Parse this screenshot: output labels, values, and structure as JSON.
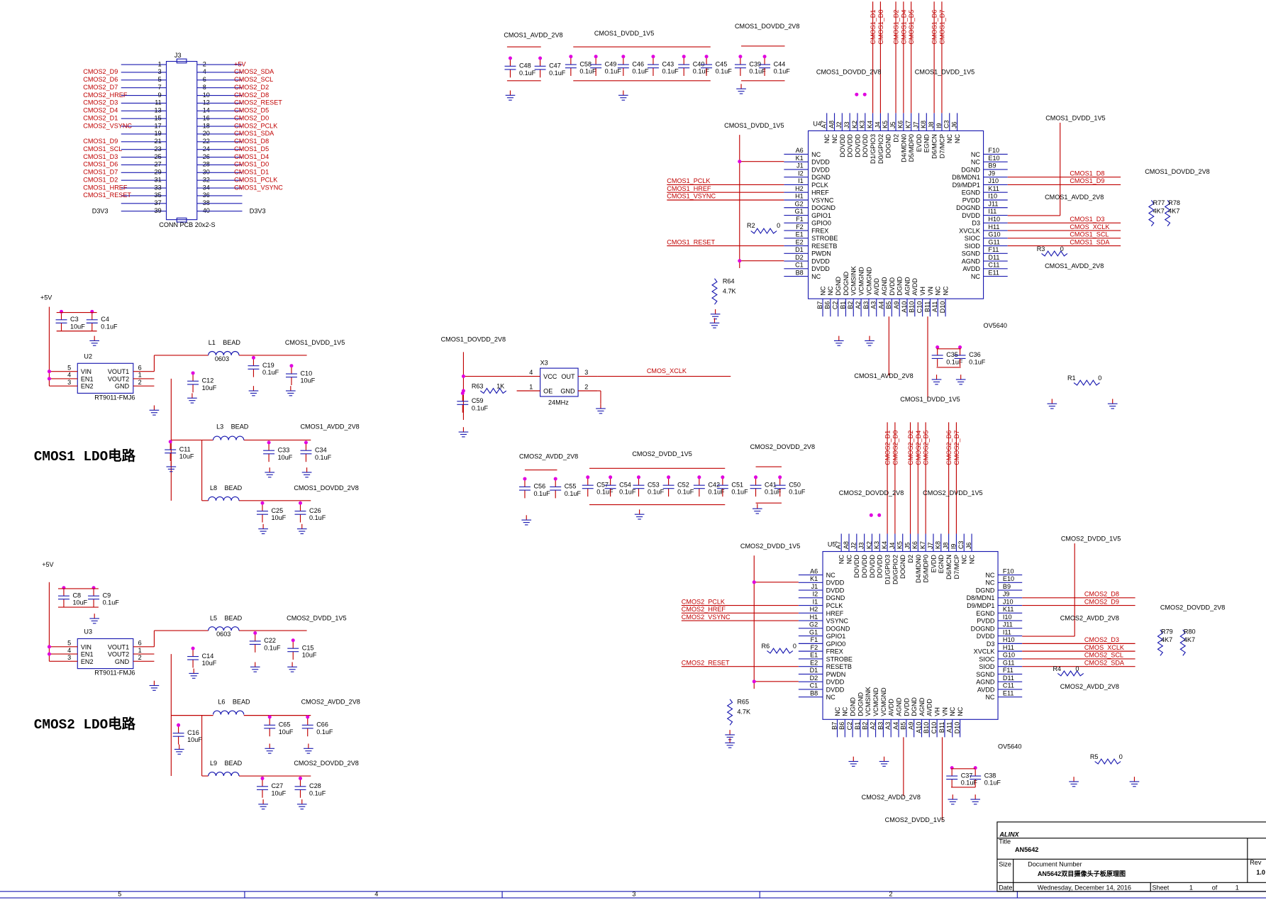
{
  "connector": {
    "ref": "J3",
    "part": "CONN PCB 20x2-S",
    "odd_pins": [
      1,
      3,
      5,
      7,
      9,
      11,
      13,
      15,
      17,
      19,
      21,
      23,
      25,
      27,
      29,
      31,
      33,
      35,
      37,
      39
    ],
    "even_pins": [
      2,
      4,
      6,
      8,
      10,
      12,
      14,
      16,
      18,
      20,
      22,
      24,
      26,
      28,
      30,
      32,
      34,
      36,
      38,
      40
    ],
    "odd_nets": [
      null,
      "CMOS2_D9",
      "CMOS2_D6",
      "CMOS2_D7",
      "CMOS2_HREF",
      "CMOS2_D3",
      "CMOS2_D4",
      "CMOS2_D1",
      "CMOS2_VSYNC",
      null,
      "CMOS1_D9",
      "CMOS1_SCL",
      "CMOS1_D3",
      "CMOS1_D6",
      "CMOS1_D7",
      "CMOS1_D2",
      "CMOS1_HREF",
      "CMOS1_RESET",
      null,
      null
    ],
    "even_nets": [
      "+5V",
      "CMOS2_SDA",
      "CMOS2_SCL",
      "CMOS2_D2",
      "CMOS2_D8",
      "CMOS2_RESET",
      "CMOS2_D5",
      "CMOS2_D0",
      "CMOS2_PCLK",
      "CMOS1_SDA",
      "CMOS1_D8",
      "CMOS1_D5",
      "CMOS1_D4",
      "CMOS1_D0",
      "CMOS1_D1",
      "CMOS1_PCLK",
      "CMOS1_VSYNC",
      null,
      null,
      null
    ]
  },
  "pinout": {
    "left": [
      {
        "pin": "A6",
        "name": "NC"
      },
      {
        "pin": "K1",
        "name": "DVDD"
      },
      {
        "pin": "J1",
        "name": "DVDD"
      },
      {
        "pin": "I2",
        "name": "DGND"
      },
      {
        "pin": "I1",
        "name": "PCLK"
      },
      {
        "pin": "H2",
        "name": "HREF"
      },
      {
        "pin": "H1",
        "name": "VSYNC"
      },
      {
        "pin": "G2",
        "name": "DOGND"
      },
      {
        "pin": "G1",
        "name": "GPIO1"
      },
      {
        "pin": "F1",
        "name": "GPIO0"
      },
      {
        "pin": "F2",
        "name": "FREX"
      },
      {
        "pin": "E1",
        "name": "STROBE"
      },
      {
        "pin": "E2",
        "name": "RESETB"
      },
      {
        "pin": "D1",
        "name": "PWDN"
      },
      {
        "pin": "D2",
        "name": "DVDD"
      },
      {
        "pin": "C1",
        "name": "DVDD"
      },
      {
        "pin": "B8",
        "name": "NC"
      }
    ],
    "right": [
      {
        "pin": "F10",
        "name": "NC"
      },
      {
        "pin": "E10",
        "name": "NC"
      },
      {
        "pin": "B9",
        "name": "DGND"
      },
      {
        "pin": "J9",
        "name": "D8/MDN1"
      },
      {
        "pin": "J10",
        "name": "D9/MDP1"
      },
      {
        "pin": "K11",
        "name": "EGND"
      },
      {
        "pin": "I10",
        "name": "PVDD"
      },
      {
        "pin": "J11",
        "name": "DOGND"
      },
      {
        "pin": "I11",
        "name": "DVDD"
      },
      {
        "pin": "H10",
        "name": "D3"
      },
      {
        "pin": "H11",
        "name": "XVCLK"
      },
      {
        "pin": "G10",
        "name": "SIOC"
      },
      {
        "pin": "G11",
        "name": "SIOD"
      },
      {
        "pin": "F11",
        "name": "SGND"
      },
      {
        "pin": "D11",
        "name": "AGND"
      },
      {
        "pin": "C11",
        "name": "AVDD"
      },
      {
        "pin": "E11",
        "name": "NC"
      }
    ],
    "top": [
      {
        "pin": "A7",
        "name": "NC"
      },
      {
        "pin": "A8",
        "name": "NC"
      },
      {
        "pin": "J2",
        "name": "DOVDD"
      },
      {
        "pin": "J3",
        "name": "DOVDD"
      },
      {
        "pin": "K2",
        "name": "DOVDD"
      },
      {
        "pin": "K3",
        "name": "DOVDD"
      },
      {
        "pin": "K4",
        "name": "D1/GPIO3"
      },
      {
        "pin": "J4",
        "name": "D0/GPIO2"
      },
      {
        "pin": "K5",
        "name": "DOGND"
      },
      {
        "pin": "J5",
        "name": "D2"
      },
      {
        "pin": "K6",
        "name": "D4/MDN0"
      },
      {
        "pin": "K7",
        "name": "D5/MDP0"
      },
      {
        "pin": "J7",
        "name": "EVDD"
      },
      {
        "pin": "K8",
        "name": "EGND"
      },
      {
        "pin": "J8",
        "name": "D6/MCN"
      },
      {
        "pin": "I9",
        "name": "D7/MCP"
      },
      {
        "pin": "C3",
        "name": "NC"
      },
      {
        "pin": "J6",
        "name": "NC"
      }
    ],
    "bottom": [
      {
        "pin": "B7",
        "name": "NC"
      },
      {
        "pin": "B6",
        "name": "NC"
      },
      {
        "pin": "C2",
        "name": "DGND"
      },
      {
        "pin": "B1",
        "name": "DOGND"
      },
      {
        "pin": "B2",
        "name": "VCMSINK"
      },
      {
        "pin": "A2",
        "name": "VCMGND"
      },
      {
        "pin": "B3",
        "name": "VCMGND"
      },
      {
        "pin": "A3",
        "name": "AVDD"
      },
      {
        "pin": "A4",
        "name": "AGND"
      },
      {
        "pin": "B5",
        "name": "DVDD"
      },
      {
        "pin": "A9",
        "name": "DGND"
      },
      {
        "pin": "A10",
        "name": "AGND"
      },
      {
        "pin": "B10",
        "name": "AVDD"
      },
      {
        "pin": "C10",
        "name": "VH"
      },
      {
        "pin": "B11",
        "name": "VN"
      },
      {
        "pin": "A11",
        "name": "NC"
      },
      {
        "pin": "D10",
        "name": "NC"
      }
    ]
  },
  "chips": [
    {
      "ref": "U4",
      "part": "OV5640",
      "left_nets": [
        null,
        null,
        null,
        null,
        "CMOS1_PCLK",
        "CMOS1_HREF",
        "CMOS1_VSYNC",
        null,
        null,
        null,
        null,
        null,
        "CMOS1_RESET",
        null,
        null,
        null,
        null
      ],
      "right_nets": [
        null,
        null,
        null,
        "CMOS1_D8",
        "CMOS1_D9",
        null,
        null,
        null,
        null,
        "CMOS1_D3",
        "CMOS_XCLK",
        "CMOS1_SCL",
        "CMOS1_SDA",
        null,
        null,
        null,
        null
      ],
      "top_nets": [
        null,
        null,
        null,
        null,
        null,
        null,
        "CMOS1_D1",
        "CMOS1_D0",
        null,
        "CMOS1_D2",
        "CMOS1_D4",
        "CMOS1_D5",
        null,
        null,
        "CMOS1_D6",
        "CMOS1_D7",
        null,
        null
      ]
    },
    {
      "ref": "U5",
      "part": "OV5640",
      "left_nets": [
        null,
        null,
        null,
        null,
        "CMOS2_PCLK",
        "CMOS2_HREF",
        "CMOS2_VSYNC",
        null,
        null,
        null,
        null,
        null,
        "CMOS2_RESET",
        null,
        null,
        null,
        null
      ],
      "right_nets": [
        null,
        null,
        null,
        "CMOS2_D8",
        "CMOS2_D9",
        null,
        null,
        null,
        null,
        "CMOS2_D3",
        "CMOS_XCLK",
        "CMOS2_SCL",
        "CMOS2_SDA",
        null,
        null,
        null,
        null
      ],
      "top_nets": [
        null,
        null,
        null,
        null,
        null,
        null,
        "CMOS2_D1",
        "CMOS2_D0",
        null,
        "CMOS2_D2",
        "CMOS2_D4",
        "CMOS2_D5",
        null,
        null,
        "CMOS2_D6",
        "CMOS2_D7",
        null,
        null
      ]
    }
  ],
  "ldos": [
    {
      "ref": "U2",
      "part": "RT9011-FMJ6"
    },
    {
      "ref": "U3",
      "part": "RT9011-FMJ6"
    }
  ],
  "ldo_pins": [
    {
      "name": "VIN",
      "pin": 5
    },
    {
      "name": "EN1",
      "pin": 4
    },
    {
      "name": "EN2",
      "pin": 3
    },
    {
      "name": "VOUT1",
      "pin": 6
    },
    {
      "name": "VOUT2",
      "pin": 1
    },
    {
      "name": "GND",
      "pin": 2
    }
  ],
  "oscillator": {
    "ref": "X3",
    "freq": "24MHz",
    "pins": [
      {
        "name": "VCC",
        "pin": 4
      },
      {
        "name": "OUT",
        "pin": 3
      },
      {
        "name": "OE",
        "pin": 1
      },
      {
        "name": "GND",
        "pin": 2
      }
    ]
  },
  "capacitors": [
    {
      "ref": "C48",
      "value": "0.1uF"
    },
    {
      "ref": "C47",
      "value": "0.1uF"
    },
    {
      "ref": "C58",
      "value": "0.1uF"
    },
    {
      "ref": "C49",
      "value": "0.1uF"
    },
    {
      "ref": "C46",
      "value": "0.1uF"
    },
    {
      "ref": "C43",
      "value": "0.1uF"
    },
    {
      "ref": "C40",
      "value": "0.1uF"
    },
    {
      "ref": "C45",
      "value": "0.1uF"
    },
    {
      "ref": "C39",
      "value": "0.1uF"
    },
    {
      "ref": "C44",
      "value": "0.1uF"
    },
    {
      "ref": "C3",
      "value": "10uF"
    },
    {
      "ref": "C4",
      "value": "0.1uF"
    },
    {
      "ref": "C12",
      "value": "10uF"
    },
    {
      "ref": "C19",
      "value": "0.1uF"
    },
    {
      "ref": "C10",
      "value": "10uF"
    },
    {
      "ref": "C11",
      "value": "10uF"
    },
    {
      "ref": "C33",
      "value": "10uF"
    },
    {
      "ref": "C34",
      "value": "0.1uF"
    },
    {
      "ref": "C25",
      "value": "10uF"
    },
    {
      "ref": "C26",
      "value": "0.1uF"
    },
    {
      "ref": "C8",
      "value": "10uF"
    },
    {
      "ref": "C9",
      "value": "0.1uF"
    },
    {
      "ref": "C14",
      "value": "10uF"
    },
    {
      "ref": "C22",
      "value": "0.1uF"
    },
    {
      "ref": "C15",
      "value": "10uF"
    },
    {
      "ref": "C16",
      "value": "10uF"
    },
    {
      "ref": "C65",
      "value": "10uF"
    },
    {
      "ref": "C66",
      "value": "0.1uF"
    },
    {
      "ref": "C27",
      "value": "10uF"
    },
    {
      "ref": "C28",
      "value": "0.1uF"
    },
    {
      "ref": "C59",
      "value": "0.1uF"
    },
    {
      "ref": "C56",
      "value": "0.1uF"
    },
    {
      "ref": "C55",
      "value": "0.1uF"
    },
    {
      "ref": "C57",
      "value": "0.1uF"
    },
    {
      "ref": "C54",
      "value": "0.1uF"
    },
    {
      "ref": "C53",
      "value": "0.1uF"
    },
    {
      "ref": "C52",
      "value": "0.1uF"
    },
    {
      "ref": "C42",
      "value": "0.1uF"
    },
    {
      "ref": "C51",
      "value": "0.1uF"
    },
    {
      "ref": "C41",
      "value": "0.1uF"
    },
    {
      "ref": "C50",
      "value": "0.1uF"
    },
    {
      "ref": "C35",
      "value": "0.1uF"
    },
    {
      "ref": "C36",
      "value": "0.1uF"
    },
    {
      "ref": "C37",
      "value": "0.1uF"
    },
    {
      "ref": "C38",
      "value": "0.1uF"
    }
  ],
  "resistors": [
    {
      "ref": "R2",
      "value": "0"
    },
    {
      "ref": "R64",
      "value": "4.7K"
    },
    {
      "ref": "R63",
      "value": "1K"
    },
    {
      "ref": "R3",
      "value": "0"
    },
    {
      "ref": "R1",
      "value": "0"
    },
    {
      "ref": "R77",
      "value": "4K7"
    },
    {
      "ref": "R78",
      "value": "4K7"
    },
    {
      "ref": "R6",
      "value": "0"
    },
    {
      "ref": "R65",
      "value": "4.7K"
    },
    {
      "ref": "R4",
      "value": "0"
    },
    {
      "ref": "R5",
      "value": "0"
    },
    {
      "ref": "R79",
      "value": "4K7"
    },
    {
      "ref": "R80",
      "value": "4K7"
    }
  ],
  "inductors": [
    {
      "ref": "L1",
      "type": "BEAD",
      "package": "0603"
    },
    {
      "ref": "L3",
      "type": "BEAD"
    },
    {
      "ref": "L8",
      "type": "BEAD"
    },
    {
      "ref": "L5",
      "type": "BEAD",
      "package": "0603"
    },
    {
      "ref": "L6",
      "type": "BEAD"
    },
    {
      "ref": "L9",
      "type": "BEAD"
    }
  ],
  "net_labels": [
    "+5V",
    "CMOS1_DVDD_1V5",
    "CMOS1_AVDD_2V8",
    "CMOS1_DOVDD_2V8",
    "+5V",
    "CMOS2_DVDD_1V5",
    "CMOS2_AVDD_2V8",
    "CMOS2_DOVDD_2V8",
    "CMOS1_AVDD_2V8",
    "CMOS1_DVDD_1V5",
    "CMOS1_DOVDD_2V8",
    "CMOS1_DOVDD_2V8",
    "CMOS_XCLK",
    "CMOS2_AVDD_2V8",
    "CMOS2_DVDD_1V5",
    "CMOS2_DOVDD_2V8",
    "CMOS1_DOVDD_2V8",
    "CMOS1_DVDD_1V5",
    "CMOS1_DVDD_1V5",
    "CMOS1_DVDD_1V5",
    "CMOS1_DOVDD_2V8",
    "CMOS1_AVDD_2V8",
    "CMOS1_AVDD_2V8",
    "CMOS1_AVDD_2V8",
    "CMOS1_DVDD_1V5",
    "CMOS2_DOVDD_2V8",
    "CMOS2_DVDD_1V5",
    "CMOS2_DVDD_1V5",
    "CMOS2_DVDD_1V5",
    "CMOS2_DOVDD_2V8",
    "CMOS2_AVDD_2V8",
    "CMOS2_AVDD_2V8",
    "CMOS2_AVDD_2V8",
    "CMOS2_DVDD_1V5",
    "D3V3",
    "D3V3"
  ],
  "headings": [
    "CMOS1 LDO电路",
    "CMOS2 LDO电路"
  ],
  "title_block": {
    "logo": "ALINX",
    "title_label": "Title",
    "title": "AN5642",
    "size_label": "Size",
    "docnum_label": "Document Number",
    "document": "AN5642双目摄像头子板原理图",
    "rev_label": "Rev",
    "rev": "1.0",
    "date_label": "Date:",
    "date": "Wednesday, December 14, 2016",
    "sheet_label": "Sheet",
    "sheet": 1,
    "of_label": "of",
    "sheets": 1
  },
  "zones": [
    5,
    4,
    3,
    2
  ]
}
